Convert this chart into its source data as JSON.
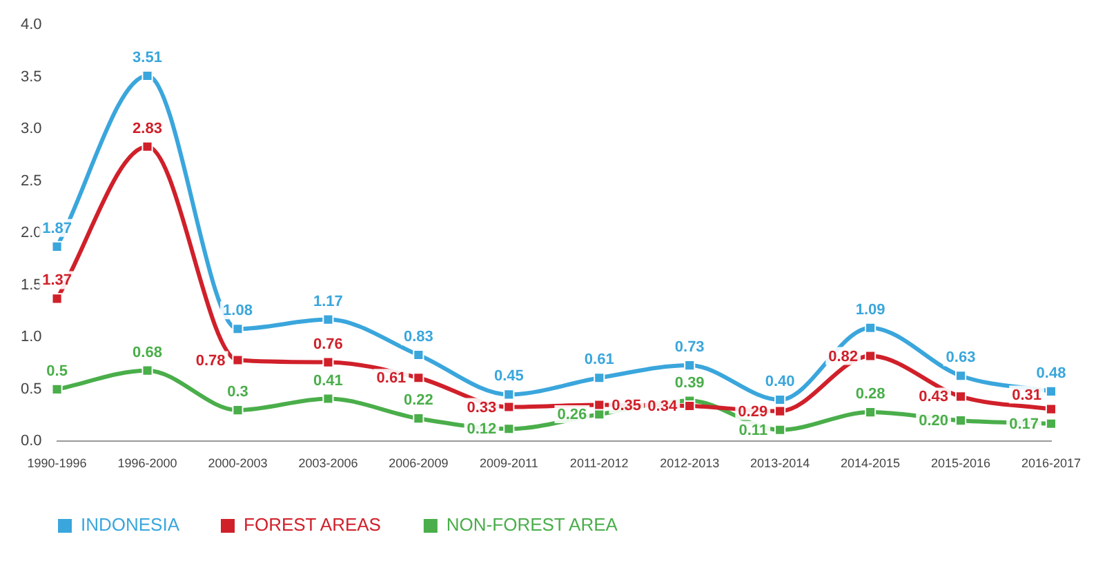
{
  "chart_data": {
    "type": "line",
    "categories": [
      "1990-1996",
      "1996-2000",
      "2000-2003",
      "2003-2006",
      "2006-2009",
      "2009-2011",
      "2011-2012",
      "2012-2013",
      "2013-2014",
      "2014-2015",
      "2015-2016",
      "2016-2017"
    ],
    "series": [
      {
        "name": "INDONESIA",
        "color": "#3aa6dc",
        "values": [
          1.87,
          3.51,
          1.08,
          1.17,
          0.83,
          0.45,
          0.61,
          0.73,
          0.4,
          1.09,
          0.63,
          0.48
        ],
        "value_labels": [
          "1.87",
          "3.51",
          "1.08",
          "1.17",
          "0.83",
          "0.45",
          "0.61",
          "0.73",
          "0.40",
          "1.09",
          "0.63",
          "0.48"
        ]
      },
      {
        "name": "FOREST AREAS",
        "color": "#d0202a",
        "values": [
          1.37,
          2.83,
          0.78,
          0.76,
          0.61,
          0.33,
          0.35,
          0.34,
          0.29,
          0.82,
          0.43,
          0.31
        ],
        "value_labels": [
          "1.37",
          "2.83",
          "0.78",
          "0.76",
          "0.61",
          "0.33",
          "0.35",
          "0.34",
          "0.29",
          "0.82",
          "0.43",
          "0.31"
        ]
      },
      {
        "name": "NON-FOREST AREA",
        "color": "#4aae4a",
        "values": [
          0.5,
          0.68,
          0.3,
          0.41,
          0.22,
          0.12,
          0.26,
          0.39,
          0.11,
          0.28,
          0.2,
          0.17
        ],
        "value_labels": [
          "0.5",
          "0.68",
          "0.3",
          "0.41",
          "0.22",
          "0.12",
          "0.26",
          "0.39",
          "0.11",
          "0.28",
          "0.20",
          "0.17"
        ]
      }
    ],
    "ylim": [
      0,
      4
    ],
    "yticks": [
      {
        "value": 0,
        "label": "0.0"
      },
      {
        "value": 0.5,
        "label": "0.5"
      },
      {
        "value": 1,
        "label": "1.0"
      },
      {
        "value": 1.5,
        "label": "1.5"
      },
      {
        "value": 2,
        "label": "2.0"
      },
      {
        "value": 2.5,
        "label": "2.5"
      },
      {
        "value": 3,
        "label": "3.0"
      },
      {
        "value": 3.5,
        "label": "3.5"
      },
      {
        "value": 4,
        "label": "4.0"
      }
    ],
    "grid": false,
    "legend": "bottom left",
    "marker": "square",
    "line_style": "solid"
  }
}
